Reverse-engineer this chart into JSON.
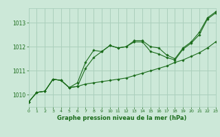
{
  "background_color": "#cce8d8",
  "grid_color": "#aacfbc",
  "line_color": "#1a6b1a",
  "marker_color": "#1a6b1a",
  "xlabel": "Graphe pression niveau de la mer (hPa)",
  "xlim": [
    0,
    23
  ],
  "ylim": [
    1009.5,
    1013.6
  ],
  "yticks": [
    1010,
    1011,
    1012,
    1013
  ],
  "xticks": [
    0,
    1,
    2,
    3,
    4,
    5,
    6,
    7,
    8,
    9,
    10,
    11,
    12,
    13,
    14,
    15,
    16,
    17,
    18,
    19,
    20,
    21,
    22,
    23
  ],
  "series1": [
    1009.7,
    1010.1,
    1010.15,
    1010.65,
    1010.6,
    1010.3,
    1010.35,
    1011.1,
    1011.55,
    1011.8,
    1012.05,
    1011.95,
    1012.0,
    1012.2,
    1012.2,
    1011.8,
    1011.7,
    1011.55,
    1011.45,
    1011.9,
    1012.15,
    1012.5,
    1013.15,
    1013.4
  ],
  "series2": [
    1009.7,
    1010.1,
    1010.15,
    1010.65,
    1010.6,
    1010.3,
    1010.35,
    1010.45,
    1010.5,
    1010.55,
    1010.6,
    1010.65,
    1010.7,
    1010.8,
    1010.9,
    1011.0,
    1011.1,
    1011.2,
    1011.35,
    1011.45,
    1011.6,
    1011.75,
    1011.95,
    1012.2
  ],
  "series3": [
    1009.7,
    1010.1,
    1010.15,
    1010.65,
    1010.6,
    1010.3,
    1010.5,
    1011.35,
    1011.85,
    1011.8,
    1012.05,
    1011.95,
    1012.0,
    1012.25,
    1012.25,
    1012.0,
    1011.95,
    1011.65,
    1011.5,
    1011.95,
    1012.2,
    1012.6,
    1013.2,
    1013.45
  ]
}
